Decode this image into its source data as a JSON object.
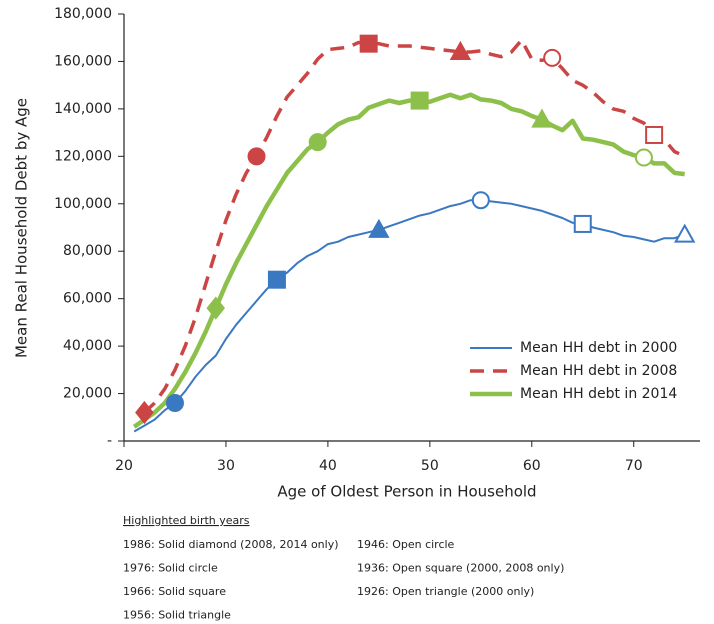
{
  "chart_data": {
    "type": "line",
    "ylabel": "Mean Real Household Debt by Age",
    "xlabel": "Age of Oldest Person in Household",
    "xlim": [
      20,
      76.5
    ],
    "xticks": [
      20,
      30,
      40,
      50,
      60,
      70
    ],
    "ylim": [
      0,
      180000
    ],
    "yticks": [
      {
        "value": 0,
        "label": "-"
      },
      {
        "value": 20000,
        "label": "20,000"
      },
      {
        "value": 40000,
        "label": "40,000"
      },
      {
        "value": 60000,
        "label": "60,000"
      },
      {
        "value": 80000,
        "label": "80,000"
      },
      {
        "value": 100000,
        "label": "100,000"
      },
      {
        "value": 120000,
        "label": "120,000"
      },
      {
        "value": 140000,
        "label": "140,000"
      },
      {
        "value": 160000,
        "label": "160,000"
      },
      {
        "value": 180000,
        "label": "180,000"
      }
    ],
    "legend": "lower right",
    "x": [
      21,
      22,
      23,
      24,
      25,
      26,
      27,
      28,
      29,
      30,
      31,
      32,
      33,
      34,
      35,
      36,
      37,
      38,
      39,
      40,
      41,
      42,
      43,
      44,
      45,
      46,
      47,
      48,
      49,
      50,
      51,
      52,
      53,
      54,
      55,
      56,
      57,
      58,
      59,
      60,
      61,
      62,
      63,
      64,
      65,
      66,
      67,
      68,
      69,
      70,
      71,
      72,
      73,
      74,
      75
    ],
    "series": [
      {
        "name": "Mean HH debt in 2000",
        "color": "#3b78c2",
        "style": "solid",
        "width": 2,
        "values": [
          4000,
          6500,
          9000,
          13000,
          16000,
          21000,
          27000,
          32000,
          36000,
          43000,
          49000,
          54000,
          59000,
          64000,
          68000,
          71000,
          75000,
          78000,
          80000,
          83000,
          84000,
          86000,
          87000,
          88000,
          89000,
          90500,
          92000,
          93500,
          95000,
          96000,
          97500,
          99000,
          100000,
          101500,
          101500,
          101000,
          100500,
          100000,
          99000,
          98000,
          97000,
          95500,
          94000,
          92000,
          91500,
          90000,
          89000,
          88000,
          86500,
          86000,
          85000,
          84000,
          85500,
          85500,
          87000
        ],
        "markers": [
          {
            "x": 25,
            "shape": "circle",
            "filled": true
          },
          {
            "x": 35,
            "shape": "square",
            "filled": true
          },
          {
            "x": 45,
            "shape": "triangle",
            "filled": true
          },
          {
            "x": 55,
            "shape": "circle",
            "filled": false
          },
          {
            "x": 65,
            "shape": "square",
            "filled": false
          },
          {
            "x": 75,
            "shape": "triangle",
            "filled": false
          }
        ]
      },
      {
        "name": "Mean HH debt in 2008",
        "color": "#cc4545",
        "style": "dashed",
        "width": 3.5,
        "values": [
          null,
          12000,
          16000,
          22000,
          30000,
          40000,
          52000,
          66000,
          80000,
          93000,
          104000,
          113000,
          120000,
          128000,
          137000,
          145000,
          150000,
          155000,
          161000,
          165000,
          165500,
          166000,
          168000,
          167500,
          167500,
          166500,
          166500,
          166500,
          166000,
          165500,
          165000,
          164500,
          164000,
          164000,
          164500,
          163000,
          162000,
          164000,
          169000,
          161000,
          160500,
          161500,
          157000,
          152000,
          150000,
          147000,
          143000,
          140000,
          139000,
          136000,
          134000,
          129000,
          127000,
          122000,
          120000
        ],
        "markers": [
          {
            "x": 22,
            "shape": "diamond",
            "filled": true
          },
          {
            "x": 33,
            "shape": "circle",
            "filled": true
          },
          {
            "x": 44,
            "shape": "square",
            "filled": true
          },
          {
            "x": 53,
            "shape": "triangle",
            "filled": true
          },
          {
            "x": 62,
            "shape": "circle",
            "filled": false
          },
          {
            "x": 72,
            "shape": "square",
            "filled": false
          }
        ]
      },
      {
        "name": "Mean HH debt in 2014",
        "color": "#8dc04b",
        "style": "solid",
        "width": 4.5,
        "values": [
          6000,
          9000,
          12000,
          16000,
          22000,
          29000,
          37000,
          46000,
          56000,
          66000,
          75000,
          83000,
          91000,
          99000,
          106000,
          113000,
          118000,
          123000,
          126000,
          130000,
          133500,
          135500,
          136500,
          140500,
          142000,
          143500,
          142500,
          143500,
          143500,
          143000,
          144500,
          146000,
          144500,
          146000,
          144000,
          143500,
          142500,
          140000,
          139000,
          137000,
          135500,
          133000,
          131000,
          135000,
          127500,
          127000,
          126000,
          125000,
          122000,
          120500,
          119500,
          117000,
          117000,
          113000,
          112500
        ],
        "markers": [
          {
            "x": 29,
            "shape": "diamond",
            "filled": true
          },
          {
            "x": 39,
            "shape": "circle",
            "filled": true
          },
          {
            "x": 49,
            "shape": "square",
            "filled": true
          },
          {
            "x": 61,
            "shape": "triangle",
            "filled": true
          },
          {
            "x": 71,
            "shape": "circle",
            "filled": false
          }
        ]
      }
    ],
    "notes": {
      "title": "Highlighted birth years",
      "left": [
        "1986: Solid diamond (2008, 2014 only)",
        "1976: Solid circle",
        "1966: Solid square",
        "1956: Solid triangle"
      ],
      "right": [
        "1946: Open circle",
        "1936: Open square (2000, 2008 only)",
        "1926: Open triangle (2000 only)"
      ]
    }
  }
}
